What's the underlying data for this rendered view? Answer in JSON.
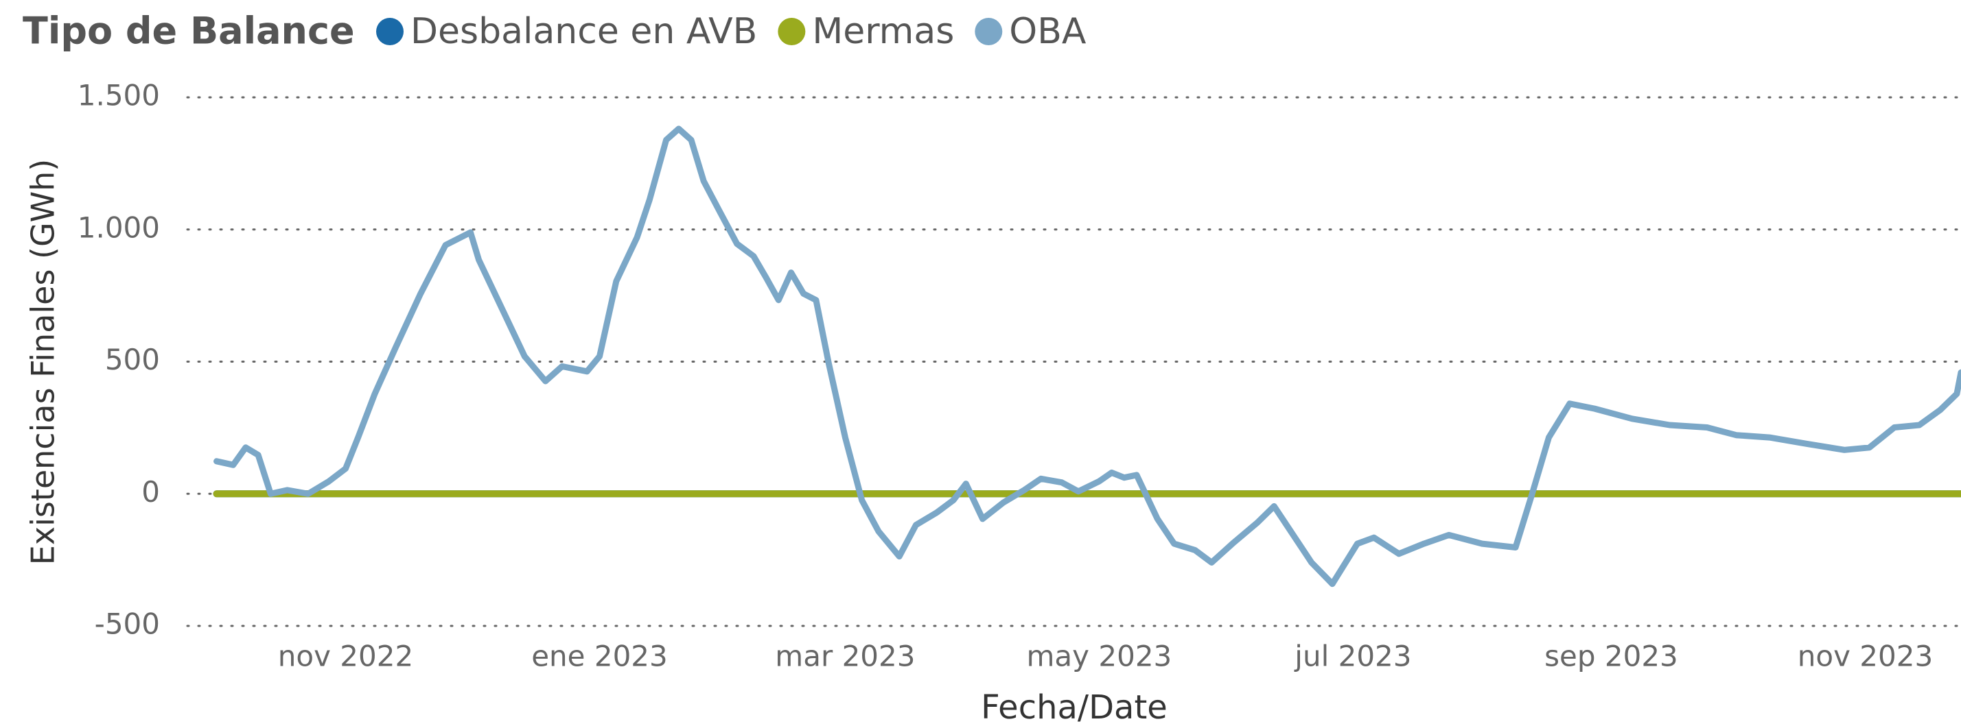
{
  "chart_data": {
    "type": "line",
    "legend_title": "Tipo de Balance",
    "xlabel": "Fecha/Date",
    "ylabel": "Existencias Finales (GWh)",
    "legend": "top-left",
    "grid": true,
    "xlim": [
      "2022-09-24",
      "2023-11-24"
    ],
    "xticks": [
      {
        "value": "2022-11-01",
        "label": "nov 2022"
      },
      {
        "value": "2023-01-01",
        "label": "ene 2023"
      },
      {
        "value": "2023-03-01",
        "label": "mar 2023"
      },
      {
        "value": "2023-05-01",
        "label": "may 2023"
      },
      {
        "value": "2023-07-01",
        "label": "jul 2023"
      },
      {
        "value": "2023-09-01",
        "label": "sep 2023"
      },
      {
        "value": "2023-11-01",
        "label": "nov 2023"
      }
    ],
    "ylim": [
      -500,
      1500
    ],
    "yticks": [
      -500,
      0,
      500,
      {
        "value": 1000,
        "label": "1.000"
      },
      {
        "value": 1500,
        "label": "1.500"
      }
    ],
    "series": [
      {
        "name": "Desbalance en AVB",
        "color": "#1a6aa8",
        "x": [
          "2022-10-01",
          "2023-01-10",
          "2023-11-24"
        ],
        "values": [
          0,
          0,
          0
        ]
      },
      {
        "name": "Mermas",
        "color": "#9aab1e",
        "x": [
          "2022-10-01",
          "2023-11-24"
        ],
        "values": [
          0,
          0
        ]
      },
      {
        "name": "OBA",
        "color": "#7ba7c7",
        "x": [
          "2022-10-01",
          "2022-10-05",
          "2022-10-08",
          "2022-10-11",
          "2022-10-14",
          "2022-10-18",
          "2022-10-23",
          "2022-10-28",
          "2022-11-01",
          "2022-11-04",
          "2022-11-08",
          "2022-11-13",
          "2022-11-19",
          "2022-11-25",
          "2022-12-01",
          "2022-12-03",
          "2022-12-09",
          "2022-12-14",
          "2022-12-19",
          "2022-12-23",
          "2022-12-29",
          "2023-01-01",
          "2023-01-05",
          "2023-01-10",
          "2023-01-13",
          "2023-01-17",
          "2023-01-20",
          "2023-01-23",
          "2023-01-26",
          "2023-01-30",
          "2023-02-03",
          "2023-02-07",
          "2023-02-10",
          "2023-02-13",
          "2023-02-16",
          "2023-02-19",
          "2023-02-22",
          "2023-02-25",
          "2023-03-01",
          "2023-03-05",
          "2023-03-09",
          "2023-03-14",
          "2023-03-18",
          "2023-03-23",
          "2023-03-27",
          "2023-03-30",
          "2023-04-03",
          "2023-04-08",
          "2023-04-13",
          "2023-04-17",
          "2023-04-22",
          "2023-04-26",
          "2023-05-01",
          "2023-05-04",
          "2023-05-07",
          "2023-05-10",
          "2023-05-15",
          "2023-05-19",
          "2023-05-24",
          "2023-05-28",
          "2023-06-02",
          "2023-06-08",
          "2023-06-12",
          "2023-06-15",
          "2023-06-21",
          "2023-06-26",
          "2023-07-02",
          "2023-07-06",
          "2023-07-12",
          "2023-07-18",
          "2023-07-24",
          "2023-08-01",
          "2023-08-09",
          "2023-08-13",
          "2023-08-17",
          "2023-08-22",
          "2023-08-28",
          "2023-09-06",
          "2023-09-15",
          "2023-09-24",
          "2023-10-01",
          "2023-10-09",
          "2023-10-18",
          "2023-10-27",
          "2023-11-02",
          "2023-11-08",
          "2023-11-14",
          "2023-11-19",
          "2023-11-23",
          "2023-11-24"
        ],
        "values": [
          123,
          109,
          175,
          147,
          0,
          14,
          0,
          47,
          95,
          213,
          378,
          553,
          757,
          941,
          989,
          885,
          686,
          520,
          426,
          482,
          463,
          520,
          804,
          970,
          1112,
          1339,
          1381,
          1339,
          1183,
          1064,
          946,
          899,
          818,
          733,
          837,
          757,
          733,
          497,
          213,
          -24,
          -142,
          -237,
          -118,
          -71,
          -24,
          38,
          -95,
          -33,
          14,
          57,
          43,
          9,
          47,
          80,
          61,
          71,
          -95,
          -189,
          -213,
          -260,
          -189,
          -109,
          -47,
          -118,
          -260,
          -341,
          -189,
          -166,
          -227,
          -189,
          -156,
          -189,
          -203,
          0,
          213,
          341,
          322,
          284,
          260,
          251,
          222,
          213,
          189,
          166,
          175,
          251,
          260,
          317,
          378,
          459
        ]
      }
    ]
  }
}
